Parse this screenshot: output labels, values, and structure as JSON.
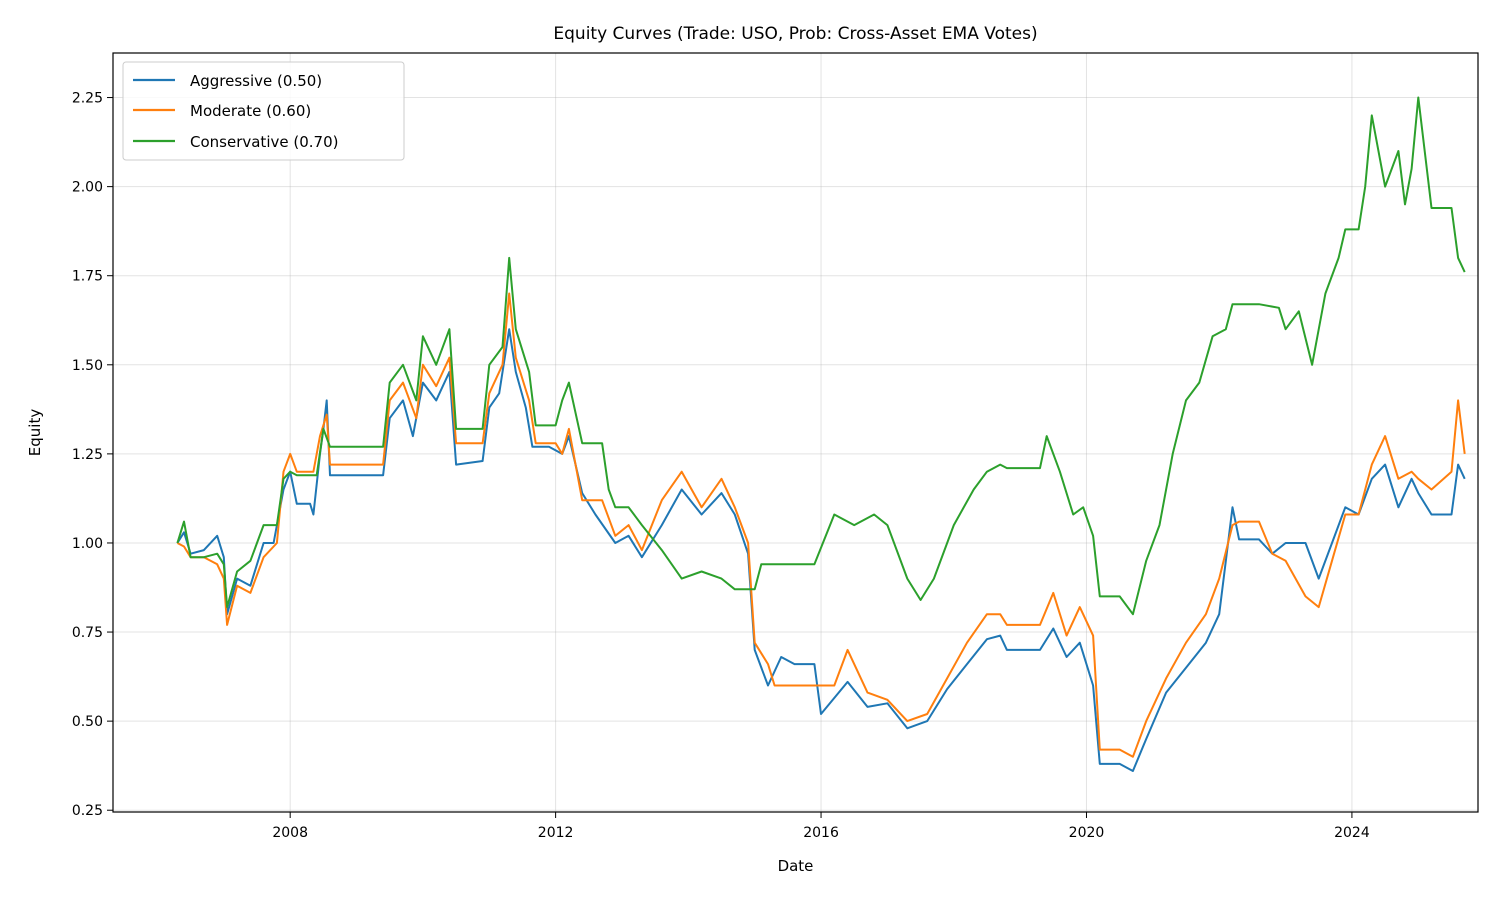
{
  "chart_data": {
    "type": "line",
    "title": "Equity Curves (Trade: USO, Prob: Cross-Asset EMA Votes)",
    "xlabel": "Date",
    "ylabel": "Equity",
    "xlim": [
      2005.33,
      2025.9
    ],
    "ylim": [
      0.245,
      2.375
    ],
    "x_ticks": [
      2008,
      2012,
      2016,
      2020,
      2024
    ],
    "x_tick_labels": [
      "2008",
      "2012",
      "2016",
      "2020",
      "2024"
    ],
    "y_ticks": [
      0.25,
      0.5,
      0.75,
      1.0,
      1.25,
      1.5,
      1.75,
      2.0,
      2.25
    ],
    "y_tick_labels": [
      "0.25",
      "0.50",
      "0.75",
      "1.00",
      "1.25",
      "1.50",
      "1.75",
      "2.00",
      "2.25"
    ],
    "grid": true,
    "legend_position": "top-left",
    "series": [
      {
        "name": "Aggressive (0.50)",
        "color": "#1f77b4",
        "points": [
          [
            2006.3,
            1.0
          ],
          [
            2006.4,
            1.03
          ],
          [
            2006.5,
            0.97
          ],
          [
            2006.7,
            0.98
          ],
          [
            2006.9,
            1.02
          ],
          [
            2007.0,
            0.96
          ],
          [
            2007.05,
            0.8
          ],
          [
            2007.2,
            0.9
          ],
          [
            2007.4,
            0.88
          ],
          [
            2007.6,
            1.0
          ],
          [
            2007.75,
            1.0
          ],
          [
            2007.9,
            1.15
          ],
          [
            2008.0,
            1.2
          ],
          [
            2008.1,
            1.11
          ],
          [
            2008.3,
            1.11
          ],
          [
            2008.35,
            1.08
          ],
          [
            2008.45,
            1.25
          ],
          [
            2008.5,
            1.32
          ],
          [
            2008.55,
            1.4
          ],
          [
            2008.6,
            1.19
          ],
          [
            2009.4,
            1.19
          ],
          [
            2009.5,
            1.35
          ],
          [
            2009.7,
            1.4
          ],
          [
            2009.85,
            1.3
          ],
          [
            2010.0,
            1.45
          ],
          [
            2010.2,
            1.4
          ],
          [
            2010.4,
            1.48
          ],
          [
            2010.5,
            1.22
          ],
          [
            2010.9,
            1.23
          ],
          [
            2011.0,
            1.38
          ],
          [
            2011.15,
            1.42
          ],
          [
            2011.3,
            1.6
          ],
          [
            2011.4,
            1.48
          ],
          [
            2011.55,
            1.38
          ],
          [
            2011.65,
            1.27
          ],
          [
            2011.9,
            1.27
          ],
          [
            2012.1,
            1.25
          ],
          [
            2012.2,
            1.3
          ],
          [
            2012.4,
            1.14
          ],
          [
            2012.6,
            1.08
          ],
          [
            2012.9,
            1.0
          ],
          [
            2013.1,
            1.02
          ],
          [
            2013.3,
            0.96
          ],
          [
            2013.6,
            1.05
          ],
          [
            2013.9,
            1.15
          ],
          [
            2014.2,
            1.08
          ],
          [
            2014.5,
            1.14
          ],
          [
            2014.7,
            1.08
          ],
          [
            2014.9,
            0.97
          ],
          [
            2015.0,
            0.7
          ],
          [
            2015.2,
            0.6
          ],
          [
            2015.4,
            0.68
          ],
          [
            2015.6,
            0.66
          ],
          [
            2015.9,
            0.66
          ],
          [
            2016.0,
            0.52
          ],
          [
            2016.4,
            0.61
          ],
          [
            2016.7,
            0.54
          ],
          [
            2017.0,
            0.55
          ],
          [
            2017.3,
            0.48
          ],
          [
            2017.6,
            0.5
          ],
          [
            2017.9,
            0.59
          ],
          [
            2018.2,
            0.66
          ],
          [
            2018.5,
            0.73
          ],
          [
            2018.7,
            0.74
          ],
          [
            2018.8,
            0.7
          ],
          [
            2019.3,
            0.7
          ],
          [
            2019.5,
            0.76
          ],
          [
            2019.7,
            0.68
          ],
          [
            2019.9,
            0.72
          ],
          [
            2020.1,
            0.6
          ],
          [
            2020.2,
            0.38
          ],
          [
            2020.5,
            0.38
          ],
          [
            2020.7,
            0.36
          ],
          [
            2020.9,
            0.45
          ],
          [
            2021.2,
            0.58
          ],
          [
            2021.5,
            0.65
          ],
          [
            2021.8,
            0.72
          ],
          [
            2022.0,
            0.8
          ],
          [
            2022.2,
            1.1
          ],
          [
            2022.3,
            1.01
          ],
          [
            2022.6,
            1.01
          ],
          [
            2022.8,
            0.97
          ],
          [
            2023.0,
            1.0
          ],
          [
            2023.3,
            1.0
          ],
          [
            2023.5,
            0.9
          ],
          [
            2023.7,
            1.0
          ],
          [
            2023.9,
            1.1
          ],
          [
            2024.1,
            1.08
          ],
          [
            2024.3,
            1.18
          ],
          [
            2024.5,
            1.22
          ],
          [
            2024.7,
            1.1
          ],
          [
            2024.9,
            1.18
          ],
          [
            2025.0,
            1.14
          ],
          [
            2025.2,
            1.08
          ],
          [
            2025.5,
            1.08
          ],
          [
            2025.6,
            1.22
          ],
          [
            2025.7,
            1.18
          ]
        ]
      },
      {
        "name": "Moderate (0.60)",
        "color": "#ff7f0e",
        "points": [
          [
            2006.3,
            1.0
          ],
          [
            2006.4,
            0.99
          ],
          [
            2006.5,
            0.96
          ],
          [
            2006.7,
            0.96
          ],
          [
            2006.9,
            0.94
          ],
          [
            2007.0,
            0.9
          ],
          [
            2007.05,
            0.77
          ],
          [
            2007.2,
            0.88
          ],
          [
            2007.4,
            0.86
          ],
          [
            2007.6,
            0.96
          ],
          [
            2007.8,
            1.0
          ],
          [
            2007.9,
            1.2
          ],
          [
            2008.0,
            1.25
          ],
          [
            2008.1,
            1.2
          ],
          [
            2008.35,
            1.2
          ],
          [
            2008.45,
            1.3
          ],
          [
            2008.55,
            1.36
          ],
          [
            2008.6,
            1.22
          ],
          [
            2009.4,
            1.22
          ],
          [
            2009.5,
            1.4
          ],
          [
            2009.7,
            1.45
          ],
          [
            2009.9,
            1.35
          ],
          [
            2010.0,
            1.5
          ],
          [
            2010.2,
            1.44
          ],
          [
            2010.4,
            1.52
          ],
          [
            2010.5,
            1.28
          ],
          [
            2010.9,
            1.28
          ],
          [
            2011.0,
            1.42
          ],
          [
            2011.2,
            1.5
          ],
          [
            2011.3,
            1.7
          ],
          [
            2011.4,
            1.52
          ],
          [
            2011.6,
            1.4
          ],
          [
            2011.7,
            1.28
          ],
          [
            2012.0,
            1.28
          ],
          [
            2012.1,
            1.25
          ],
          [
            2012.2,
            1.32
          ],
          [
            2012.4,
            1.12
          ],
          [
            2012.7,
            1.12
          ],
          [
            2012.9,
            1.02
          ],
          [
            2013.1,
            1.05
          ],
          [
            2013.3,
            0.98
          ],
          [
            2013.6,
            1.12
          ],
          [
            2013.9,
            1.2
          ],
          [
            2014.2,
            1.1
          ],
          [
            2014.5,
            1.18
          ],
          [
            2014.7,
            1.1
          ],
          [
            2014.9,
            1.0
          ],
          [
            2015.0,
            0.72
          ],
          [
            2015.2,
            0.66
          ],
          [
            2015.3,
            0.6
          ],
          [
            2015.9,
            0.6
          ],
          [
            2016.2,
            0.6
          ],
          [
            2016.4,
            0.7
          ],
          [
            2016.7,
            0.58
          ],
          [
            2017.0,
            0.56
          ],
          [
            2017.3,
            0.5
          ],
          [
            2017.6,
            0.52
          ],
          [
            2017.9,
            0.62
          ],
          [
            2018.2,
            0.72
          ],
          [
            2018.5,
            0.8
          ],
          [
            2018.7,
            0.8
          ],
          [
            2018.8,
            0.77
          ],
          [
            2019.3,
            0.77
          ],
          [
            2019.5,
            0.86
          ],
          [
            2019.7,
            0.74
          ],
          [
            2019.9,
            0.82
          ],
          [
            2020.1,
            0.74
          ],
          [
            2020.2,
            0.42
          ],
          [
            2020.5,
            0.42
          ],
          [
            2020.7,
            0.4
          ],
          [
            2020.9,
            0.5
          ],
          [
            2021.2,
            0.62
          ],
          [
            2021.5,
            0.72
          ],
          [
            2021.8,
            0.8
          ],
          [
            2022.0,
            0.9
          ],
          [
            2022.2,
            1.05
          ],
          [
            2022.3,
            1.06
          ],
          [
            2022.6,
            1.06
          ],
          [
            2022.8,
            0.97
          ],
          [
            2023.0,
            0.95
          ],
          [
            2023.3,
            0.85
          ],
          [
            2023.5,
            0.82
          ],
          [
            2023.7,
            0.95
          ],
          [
            2023.9,
            1.08
          ],
          [
            2024.1,
            1.08
          ],
          [
            2024.3,
            1.22
          ],
          [
            2024.5,
            1.3
          ],
          [
            2024.7,
            1.18
          ],
          [
            2024.9,
            1.2
          ],
          [
            2025.0,
            1.18
          ],
          [
            2025.2,
            1.15
          ],
          [
            2025.5,
            1.2
          ],
          [
            2025.6,
            1.4
          ],
          [
            2025.7,
            1.25
          ]
        ]
      },
      {
        "name": "Conservative (0.70)",
        "color": "#2ca02c",
        "points": [
          [
            2006.3,
            1.0
          ],
          [
            2006.4,
            1.06
          ],
          [
            2006.5,
            0.96
          ],
          [
            2006.7,
            0.96
          ],
          [
            2006.9,
            0.97
          ],
          [
            2007.0,
            0.94
          ],
          [
            2007.05,
            0.82
          ],
          [
            2007.2,
            0.92
          ],
          [
            2007.4,
            0.95
          ],
          [
            2007.6,
            1.05
          ],
          [
            2007.8,
            1.05
          ],
          [
            2007.9,
            1.18
          ],
          [
            2008.0,
            1.2
          ],
          [
            2008.1,
            1.19
          ],
          [
            2008.4,
            1.19
          ],
          [
            2008.5,
            1.32
          ],
          [
            2008.6,
            1.27
          ],
          [
            2009.4,
            1.27
          ],
          [
            2009.5,
            1.45
          ],
          [
            2009.7,
            1.5
          ],
          [
            2009.9,
            1.4
          ],
          [
            2010.0,
            1.58
          ],
          [
            2010.2,
            1.5
          ],
          [
            2010.4,
            1.6
          ],
          [
            2010.5,
            1.32
          ],
          [
            2010.9,
            1.32
          ],
          [
            2011.0,
            1.5
          ],
          [
            2011.2,
            1.55
          ],
          [
            2011.3,
            1.8
          ],
          [
            2011.4,
            1.6
          ],
          [
            2011.6,
            1.48
          ],
          [
            2011.7,
            1.33
          ],
          [
            2012.0,
            1.33
          ],
          [
            2012.1,
            1.4
          ],
          [
            2012.2,
            1.45
          ],
          [
            2012.4,
            1.28
          ],
          [
            2012.7,
            1.28
          ],
          [
            2012.8,
            1.15
          ],
          [
            2012.9,
            1.1
          ],
          [
            2013.1,
            1.1
          ],
          [
            2013.3,
            1.05
          ],
          [
            2013.6,
            0.98
          ],
          [
            2013.9,
            0.9
          ],
          [
            2014.2,
            0.92
          ],
          [
            2014.5,
            0.9
          ],
          [
            2014.7,
            0.87
          ],
          [
            2015.0,
            0.87
          ],
          [
            2015.1,
            0.94
          ],
          [
            2015.9,
            0.94
          ],
          [
            2016.2,
            1.08
          ],
          [
            2016.5,
            1.05
          ],
          [
            2016.8,
            1.08
          ],
          [
            2017.0,
            1.05
          ],
          [
            2017.3,
            0.9
          ],
          [
            2017.5,
            0.84
          ],
          [
            2017.7,
            0.9
          ],
          [
            2018.0,
            1.05
          ],
          [
            2018.3,
            1.15
          ],
          [
            2018.5,
            1.2
          ],
          [
            2018.7,
            1.22
          ],
          [
            2018.8,
            1.21
          ],
          [
            2019.3,
            1.21
          ],
          [
            2019.4,
            1.3
          ],
          [
            2019.6,
            1.2
          ],
          [
            2019.8,
            1.08
          ],
          [
            2019.95,
            1.1
          ],
          [
            2020.1,
            1.02
          ],
          [
            2020.2,
            0.85
          ],
          [
            2020.5,
            0.85
          ],
          [
            2020.7,
            0.8
          ],
          [
            2020.9,
            0.95
          ],
          [
            2021.1,
            1.05
          ],
          [
            2021.3,
            1.25
          ],
          [
            2021.5,
            1.4
          ],
          [
            2021.7,
            1.45
          ],
          [
            2021.9,
            1.58
          ],
          [
            2022.1,
            1.6
          ],
          [
            2022.2,
            1.67
          ],
          [
            2022.6,
            1.67
          ],
          [
            2022.9,
            1.66
          ],
          [
            2023.0,
            1.6
          ],
          [
            2023.2,
            1.65
          ],
          [
            2023.4,
            1.5
          ],
          [
            2023.6,
            1.7
          ],
          [
            2023.8,
            1.8
          ],
          [
            2023.9,
            1.88
          ],
          [
            2024.1,
            1.88
          ],
          [
            2024.2,
            2.0
          ],
          [
            2024.3,
            2.2
          ],
          [
            2024.5,
            2.0
          ],
          [
            2024.7,
            2.1
          ],
          [
            2024.8,
            1.95
          ],
          [
            2024.9,
            2.05
          ],
          [
            2025.0,
            2.25
          ],
          [
            2025.2,
            1.94
          ],
          [
            2025.5,
            1.94
          ],
          [
            2025.6,
            1.8
          ],
          [
            2025.7,
            1.76
          ]
        ]
      }
    ]
  }
}
